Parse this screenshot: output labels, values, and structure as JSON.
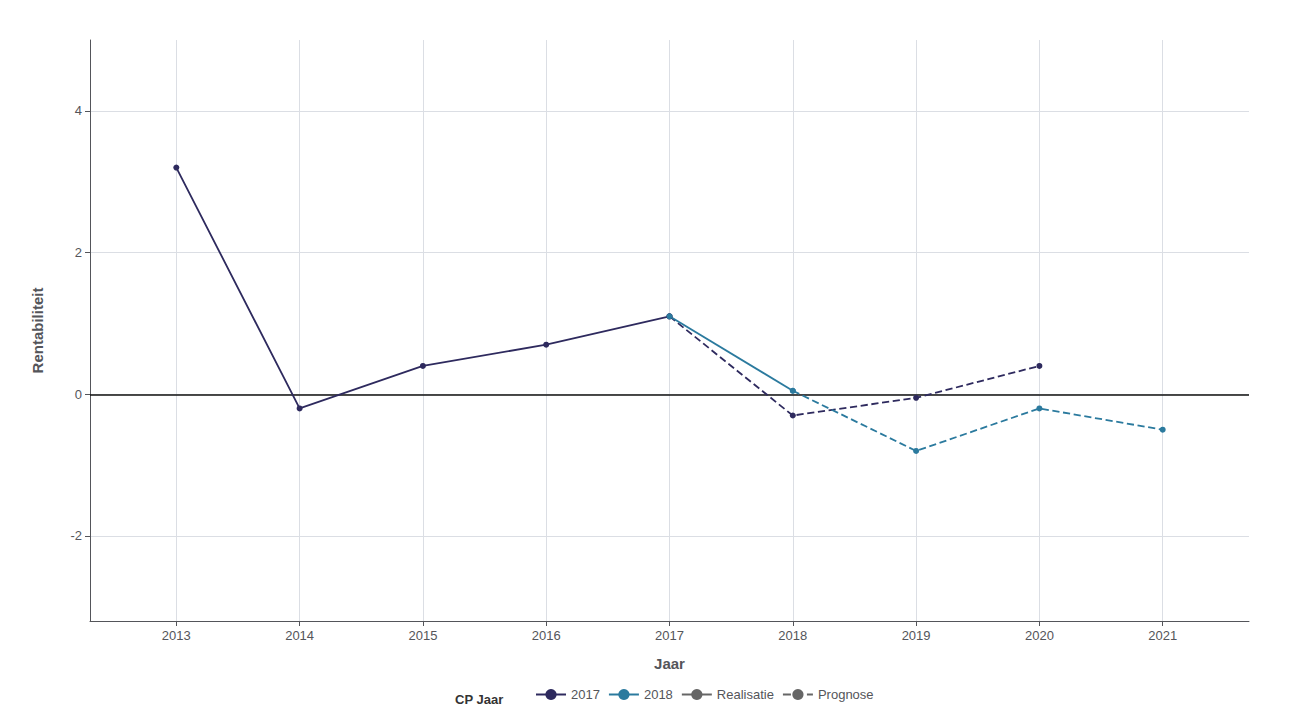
{
  "chart_data": {
    "type": "line",
    "xlabel": "Jaar",
    "ylabel": "Rentabiliteit",
    "xlim": [
      2012.3,
      2021.7
    ],
    "ylim": [
      -3.2,
      5.0
    ],
    "xticks": [
      2013,
      2014,
      2015,
      2016,
      2017,
      2018,
      2019,
      2020,
      2021
    ],
    "yticks": [
      -2,
      0,
      2,
      4
    ],
    "grid": true,
    "marker": "circle",
    "series": [
      {
        "name": "2017",
        "color": "#2E2A5E",
        "line_style": "solid",
        "x": [
          2013,
          2014,
          2015,
          2016,
          2017
        ],
        "values": [
          3.2,
          -0.2,
          0.4,
          0.7,
          1.1
        ]
      },
      {
        "name": "2017",
        "color": "#2E2A5E",
        "line_style": "dashed",
        "x": [
          2017,
          2018,
          2019,
          2020
        ],
        "values": [
          1.1,
          -0.3,
          -0.05,
          0.4
        ]
      },
      {
        "name": "2018",
        "color": "#2B7A9E",
        "line_style": "solid",
        "x": [
          2017,
          2018
        ],
        "values": [
          1.1,
          0.05
        ]
      },
      {
        "name": "2018",
        "color": "#2B7A9E",
        "line_style": "dashed",
        "x": [
          2018,
          2019,
          2020,
          2021
        ],
        "values": [
          0.05,
          -0.8,
          -0.2,
          -0.5
        ]
      }
    ],
    "legend_title": "CP Jaar",
    "legend_entries": [
      {
        "name": "Realisatie",
        "color": "#666666",
        "line_style": "solid"
      },
      {
        "name": "Prognose",
        "color": "#666666",
        "line_style": "dashed"
      }
    ],
    "hlines": [
      {
        "y": 0,
        "color": "#111111"
      }
    ]
  }
}
